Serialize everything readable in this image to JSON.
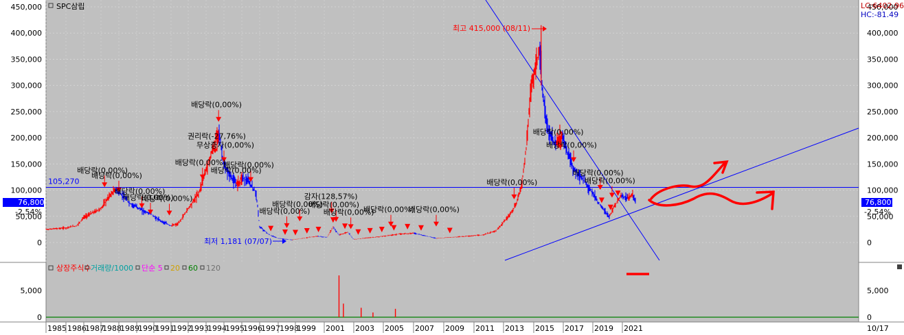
{
  "title": "SPC삼립",
  "indicators": {
    "lc": "LC:6402.96",
    "hc": "HC:-81.49"
  },
  "colors": {
    "bg": "#c0c0c0",
    "candle_up": "#ff0000",
    "candle_down": "#0000ff",
    "annotation_arrow": "#ff0000",
    "trend_line": "#0000ff",
    "hand_drawn": "#ff0000"
  },
  "current": {
    "price_label": "76,800",
    "change_label": "-2.54%"
  },
  "ref_line": {
    "label": "105,270",
    "value": 105270
  },
  "high_label": "최고 415,000 (08/11)",
  "low_label": "최저 1,181 (07/07)",
  "volume_legend": [
    {
      "text": "상장주식수",
      "color": "#ff0000"
    },
    {
      "text": "거래량/1000",
      "color": "#00a0a0"
    },
    {
      "text": "단순 5",
      "color": "#ff00ff"
    },
    {
      "text": "20",
      "color": "#d0a000"
    },
    {
      "text": "60",
      "color": "#008000"
    },
    {
      "text": "120",
      "color": "#707070"
    }
  ],
  "date_end_label": "10/17",
  "annotations": [
    {
      "text": "배당락(0,00%)",
      "year": 1994.7,
      "price": 245000
    },
    {
      "text": "권리락(-27,76%)",
      "year": 1994.5,
      "price": 185000
    },
    {
      "text": "무상증자(0,00%)",
      "year": 1995.0,
      "price": 168000
    },
    {
      "text": "배당락(0,00%)",
      "year": 1993.8,
      "price": 135000
    },
    {
      "text": "배당락(0,00%)",
      "year": 1996.5,
      "price": 130000
    },
    {
      "text": "배당락(0,00%)",
      "year": 1995.8,
      "price": 120000
    },
    {
      "text": "배당락(0,00%)",
      "year": 1988.2,
      "price": 120000
    },
    {
      "text": "배당락(0,00%)",
      "year": 1989.0,
      "price": 110000
    },
    {
      "text": "배당락(0,00%)",
      "year": 1990.3,
      "price": 80000
    },
    {
      "text": "배당락(0,00%)",
      "year": 1990.8,
      "price": 68000
    },
    {
      "text": "배당락(0,00%)",
      "year": 1991.9,
      "price": 66000
    },
    {
      "text": "배당락(0,00%)",
      "year": 1999.3,
      "price": 55000
    },
    {
      "text": "감자(128,57%)",
      "year": 2001.5,
      "price": 70000
    },
    {
      "text": "배당락(0,00%)",
      "year": 2001.8,
      "price": 54000
    },
    {
      "text": "배당락(0,00%)",
      "year": 1998.5,
      "price": 42000
    },
    {
      "text": "배당락(0,00%)",
      "year": 2002.8,
      "price": 40000
    },
    {
      "text": "배당락(0,00%)",
      "year": 2005.5,
      "price": 45000
    },
    {
      "text": "배당락(0,00%)",
      "year": 2008.5,
      "price": 45000
    },
    {
      "text": "배당락(0,00%)",
      "year": 2013.7,
      "price": 97000
    },
    {
      "text": "배당락(0,00%)",
      "year": 2016.8,
      "price": 193000
    },
    {
      "text": "배당락(0,00%)",
      "year": 2017.7,
      "price": 168000
    },
    {
      "text": "배당락(0,00%)",
      "year": 2019.5,
      "price": 115000
    },
    {
      "text": "배당락(0,00%)",
      "year": 2020.3,
      "price": 100000
    }
  ],
  "chart_data": {
    "type": "candlestick",
    "title": "SPC삼립",
    "x_unit": "year",
    "x_ticks": [
      "1985",
      "1986",
      "1987",
      "1988",
      "1989",
      "1990",
      "1991",
      "1992",
      "1993",
      "1994",
      "1995",
      "1996",
      "1997",
      "1998",
      "1999",
      "2001",
      "2003",
      "2005",
      "2007",
      "2009",
      "2011",
      "2013",
      "2015",
      "2017",
      "2019",
      "2021"
    ],
    "ylim": [
      -20000,
      455000
    ],
    "y_ticks": [
      "450,000",
      "400,000",
      "350,000",
      "300,000",
      "250,000",
      "200,000",
      "150,000",
      "100,000",
      "50,000",
      "0"
    ],
    "price_path": [
      [
        1985.0,
        25000
      ],
      [
        1986.0,
        28000
      ],
      [
        1986.6,
        32000
      ],
      [
        1987.0,
        48000
      ],
      [
        1987.6,
        58000
      ],
      [
        1988.0,
        65000
      ],
      [
        1988.5,
        90000
      ],
      [
        1988.8,
        100000
      ],
      [
        1989.2,
        90000
      ],
      [
        1989.6,
        75000
      ],
      [
        1990.0,
        68000
      ],
      [
        1990.4,
        60000
      ],
      [
        1990.8,
        55000
      ],
      [
        1991.2,
        45000
      ],
      [
        1991.6,
        38000
      ],
      [
        1992.0,
        32000
      ],
      [
        1992.4,
        35000
      ],
      [
        1992.8,
        55000
      ],
      [
        1993.2,
        75000
      ],
      [
        1993.6,
        95000
      ],
      [
        1994.0,
        140000
      ],
      [
        1994.4,
        180000
      ],
      [
        1994.7,
        215000
      ],
      [
        1995.0,
        145000
      ],
      [
        1995.3,
        130000
      ],
      [
        1995.7,
        110000
      ],
      [
        1996.0,
        125000
      ],
      [
        1996.4,
        115000
      ],
      [
        1996.8,
        95000
      ],
      [
        1997.0,
        30000
      ],
      [
        1997.5,
        15000
      ],
      [
        1998.0,
        8000
      ],
      [
        1998.8,
        5000
      ],
      [
        1999.5,
        8000
      ],
      [
        2000.5,
        12000
      ],
      [
        2001.2,
        10000
      ],
      [
        2001.6,
        30000
      ],
      [
        2002.0,
        14000
      ],
      [
        2002.6,
        20000
      ],
      [
        2003.0,
        6000
      ],
      [
        2004.0,
        9000
      ],
      [
        2005.0,
        12000
      ],
      [
        2006.0,
        16000
      ],
      [
        2007.0,
        18000
      ],
      [
        2007.6,
        14000
      ],
      [
        2008.5,
        8000
      ],
      [
        2009.5,
        10000
      ],
      [
        2010.5,
        12000
      ],
      [
        2011.5,
        14000
      ],
      [
        2012.5,
        22000
      ],
      [
        2013.2,
        45000
      ],
      [
        2013.8,
        70000
      ],
      [
        2014.2,
        110000
      ],
      [
        2014.5,
        180000
      ],
      [
        2014.8,
        290000
      ],
      [
        2015.1,
        330000
      ],
      [
        2015.4,
        370000
      ],
      [
        2015.6,
        280000
      ],
      [
        2016.0,
        210000
      ],
      [
        2016.5,
        185000
      ],
      [
        2016.9,
        205000
      ],
      [
        2017.3,
        170000
      ],
      [
        2017.7,
        140000
      ],
      [
        2018.2,
        125000
      ],
      [
        2018.6,
        110000
      ],
      [
        2019.0,
        95000
      ],
      [
        2019.4,
        75000
      ],
      [
        2019.8,
        60000
      ],
      [
        2020.1,
        48000
      ],
      [
        2020.5,
        72000
      ],
      [
        2020.9,
        90000
      ],
      [
        2021.3,
        85000
      ],
      [
        2021.7,
        90000
      ],
      [
        2021.9,
        76800
      ]
    ],
    "high": {
      "value": 415000,
      "date": "08/11",
      "year": 2015.5
    },
    "low": {
      "value": 1181,
      "date": "07/07",
      "year": 1998.7
    },
    "current_value": 76800,
    "current_change_pct": -2.54,
    "reference_level": 105270,
    "volume": {
      "y_ticks": [
        "5,000",
        "0"
      ],
      "ylim": [
        0,
        8000
      ],
      "bars": [
        [
          2002.0,
          8000
        ],
        [
          2002.3,
          2600
        ],
        [
          2003.5,
          1800
        ],
        [
          2005.8,
          1600
        ],
        [
          2004.3,
          900
        ]
      ]
    }
  }
}
